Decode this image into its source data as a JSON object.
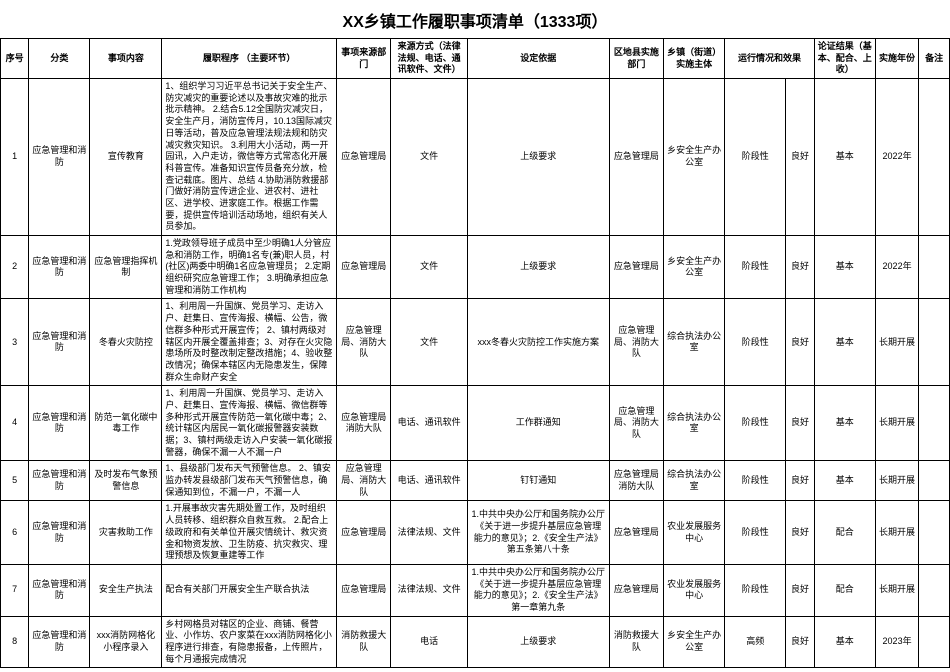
{
  "title": "XX乡镇工作履职事项清单（1333项）",
  "columns": [
    "序号",
    "分类",
    "事项内容",
    "履职程序\n（主要环节）",
    "事项来源部门",
    "来源方式（法律法规、电话、通讯软件、文件）",
    "设定依据",
    "区地县实施部门",
    "乡镇（街道）实施主体",
    "运行情况和效果",
    "",
    "论证结果（基本、配合、上收）",
    "实施年份",
    "备注"
  ],
  "rows": [
    {
      "seq": "1",
      "cat": "应急管理和消防",
      "item": "宣传教育",
      "proc": "1、组织学习习近平总书记关于安全生产、防灾减灾的重要论述以及事故灾难的批示批示精神。\n2.结合5.12全国防灾减灾日，安全生产月，消防宣传月，10.13国际减灾日等活动，普及应急管理法规法规和防灾减灾救灾知识。\n3.利用大小活动，两一开园讯，入户走访，微信等方式常态化开展科普宣传。准备知识宣传员备充分放，检查记载底。图片、总结\n4.协助消防救援部门做好消防宣传进企业、进农村、进社区、进学校、进家庭工作。根据工作需要，提供宣传培训活动场地，组织有关人员参加。",
      "dept": "应急管理局",
      "method": "文件",
      "basis": "上级要求",
      "district": "应急管理局",
      "town": "乡安全生产办公室",
      "run": "阶段性",
      "eff": "良好",
      "result": "基本",
      "year": "2022年",
      "remark": ""
    },
    {
      "seq": "2",
      "cat": "应急管理和消防",
      "item": "应急管理指挥机制",
      "proc": "1.党政领导班子成员中至少明确1人分管应急和消防工作，明确1名专(兼)职人员，村(社区)两委中明确1名应急管理员；\n2.定期组织研究应急管理工作；\n3.明确承担应急管理和消防工作机构",
      "dept": "应急管理局",
      "method": "文件",
      "basis": "上级要求",
      "district": "应急管理局",
      "town": "乡安全生产办公室",
      "run": "阶段性",
      "eff": "良好",
      "result": "基本",
      "year": "2022年",
      "remark": ""
    },
    {
      "seq": "3",
      "cat": "应急管理和消防",
      "item": "冬春火灾防控",
      "proc": "1、利用周一升国旗、党员学习、走访入户、赶集日、宣传海报、横幅、公告，微信群多种形式开展宣传；\n2、镇村两级对辖区内开展全覆盖排查；3、对存在火灾隐患场所及时整改制定整改措施；4、验收整改情况；确保本辖区内无隐患发生，保障群众生命财产安全",
      "dept": "应急管理局、消防大队",
      "method": "文件",
      "basis": "xxx冬春火灾防控工作实施方案",
      "district": "应急管理局、消防大队",
      "town": "综合执法办公室",
      "run": "阶段性",
      "eff": "良好",
      "result": "基本",
      "year": "长期开展",
      "remark": ""
    },
    {
      "seq": "4",
      "cat": "应急管理和消防",
      "item": "防范一氧化碳中毒工作",
      "proc": "1、利用周一升国旗、党员学习、走访入户、赶集日、宣传海报、横幅、微信群等多种形式开展宣传防范一氧化碳中毒；2、统计辖区内居民一氧化碳报警器安装数据；3、镇村两级走访入户安装一氧化碳报警器，确保不漏一人不漏一户",
      "dept": "应急管理局消防大队",
      "method": "电话、通讯软件",
      "basis": "工作群通知",
      "district": "应急管理局、消防大队",
      "town": "综合执法办公室",
      "run": "阶段性",
      "eff": "良好",
      "result": "基本",
      "year": "长期开展",
      "remark": ""
    },
    {
      "seq": "5",
      "cat": "应急管理和消防",
      "item": "及时发布气象预警信息",
      "proc": "1、县级部门发布天气预警信息。\n2、镇安监办转发县级部门发布天气预警信息，确保通知到位，不漏一户，不漏一人",
      "dept": "应急管理局、消防大队",
      "method": "电话、通讯软件",
      "basis": "钉钉通知",
      "district": "应急管理局消防大队",
      "town": "综合执法办公室",
      "run": "阶段性",
      "eff": "良好",
      "result": "基本",
      "year": "长期开展",
      "remark": ""
    },
    {
      "seq": "6",
      "cat": "应急管理和消防",
      "item": "灾害救助工作",
      "proc": "1.开展事故灾害先期处置工作，及时组织人员转移、组织群众自救互救。\n2.配合上级政府和有关单位开展灾情统计、救灾资金和物资发放、卫生防疫、抗灾救灾、理理预想及恢复重建等工作",
      "dept": "应急管理局",
      "method": "法律法规、文件",
      "basis": "1.中共中央办公厅和国务院办公厅《关于进一步提升基层应急管理能力的意见》；2.《安全生产法》第五条第八十条",
      "district": "应急管理局",
      "town": "农业发展服务中心",
      "run": "阶段性",
      "eff": "良好",
      "result": "配合",
      "year": "长期开展",
      "remark": ""
    },
    {
      "seq": "7",
      "cat": "应急管理和消防",
      "item": "安全生产执法",
      "proc": "配合有关部门开展安全生产联合执法",
      "dept": "应急管理局",
      "method": "法律法规、文件",
      "basis": "1.中共中央办公厅和国务院办公厅《关于进一步提升基层应急管理能力的意见》；2.《安全生产法》第一章第九条",
      "district": "应急管理局",
      "town": "农业发展服务中心",
      "run": "阶段性",
      "eff": "良好",
      "result": "配合",
      "year": "长期开展",
      "remark": ""
    },
    {
      "seq": "8",
      "cat": "应急管理和消防",
      "item": "xxx消防网格化小程序录入",
      "proc": "乡村网格员对辖区的企业、商铺、餐营业、小作坊、农户家菜在xxx消防网格化小程序进行排查，有隐患报备，上传照片，每个月通报完成情况",
      "dept": "消防救援大队",
      "method": "电话",
      "basis": "上级要求",
      "district": "消防救援大队",
      "town": "乡安全生产办公室",
      "run": "高频",
      "eff": "良好",
      "result": "基本",
      "year": "2023年",
      "remark": ""
    }
  ]
}
